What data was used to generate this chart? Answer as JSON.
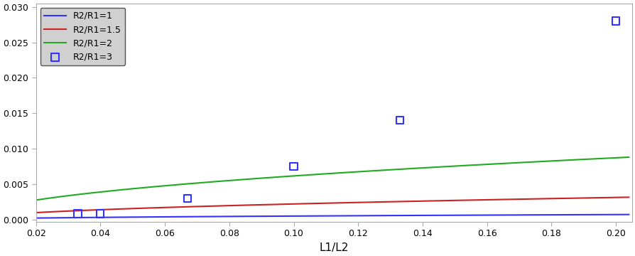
{
  "title": "",
  "xlabel": "L1/L2",
  "ylabel": "",
  "xlim": [
    0.02,
    0.205
  ],
  "ylim": [
    -0.0003,
    0.0305
  ],
  "xticks": [
    0.02,
    0.04,
    0.06,
    0.08,
    0.1,
    0.12,
    0.14,
    0.16,
    0.18,
    0.2
  ],
  "yticks": [
    0.0,
    0.005,
    0.01,
    0.015,
    0.02,
    0.025,
    0.03
  ],
  "plot_background": "#ffffff",
  "fig_background": "#ffffff",
  "lines": [
    {
      "label": "R2/R1=1",
      "color": "#3333ff",
      "A": 0.0016,
      "power": 0.5
    },
    {
      "label": "R2/R1=1.5",
      "color": "#cc2222",
      "A": 0.007,
      "power": 0.5
    },
    {
      "label": "R2/R1=2",
      "color": "#22aa22",
      "A": 0.0195,
      "power": 0.5
    }
  ],
  "scatter_label": "R2/R1=3",
  "scatter_color": "#3333ff",
  "scatter_x": [
    0.033,
    0.04,
    0.067,
    0.1,
    0.133,
    0.2
  ],
  "scatter_y": [
    0.00085,
    0.00085,
    0.003,
    0.0075,
    0.014,
    0.028
  ],
  "legend_loc": "upper left",
  "legend_facecolor": "#d0d0d0",
  "legend_edgecolor": "#555555",
  "spine_color": "#aaaaaa",
  "tick_labelsize": 9,
  "xlabel_fontsize": 11
}
